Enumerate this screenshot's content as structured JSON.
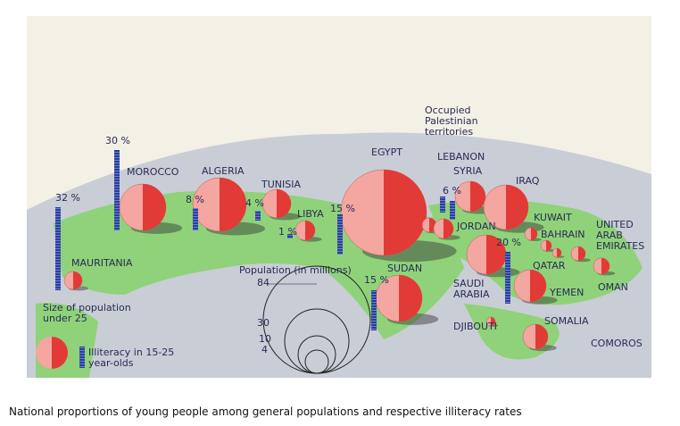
{
  "countries": [
    {
      "name": "MAURITANIA",
      "illiteracy": "32 %"
    },
    {
      "name": "MOROCCO",
      "illiteracy": "30 %"
    },
    {
      "name": "ALGERIA",
      "illiteracy": "8 %"
    },
    {
      "name": "TUNISIA",
      "illiteracy": "4 %"
    },
    {
      "name": "LIBYA",
      "illiteracy": "1 %"
    },
    {
      "name": "EGYPT",
      "illiteracy": "15 %"
    },
    {
      "name": "Occupied Palestinian territories"
    },
    {
      "name": "LEBANON",
      "illiteracy": "6 %"
    },
    {
      "name": "SYRIA"
    },
    {
      "name": "JORDAN"
    },
    {
      "name": "IRAQ"
    },
    {
      "name": "KUWAIT"
    },
    {
      "name": "BAHRAIN"
    },
    {
      "name": "QATAR"
    },
    {
      "name": "UNITED ARAB EMIRATES"
    },
    {
      "name": "SAUDI ARABIA",
      "illiteracy": "20 %"
    },
    {
      "name": "YEMEN"
    },
    {
      "name": "OMAN"
    },
    {
      "name": "SUDAN",
      "illiteracy": "15 %"
    },
    {
      "name": "DJIBOUTI"
    },
    {
      "name": "SOMALIA"
    },
    {
      "name": "COMOROS"
    }
  ],
  "legend": {
    "population_title": "Population (in millions)",
    "population_scale": [
      "84",
      "30",
      "10",
      "4"
    ],
    "pie_label": "Size of population under 25",
    "bar_label": "Illiteracy in 15-25 year-olds"
  },
  "caption": "National proportions of young people among general populations and respective illiteracy rates"
}
